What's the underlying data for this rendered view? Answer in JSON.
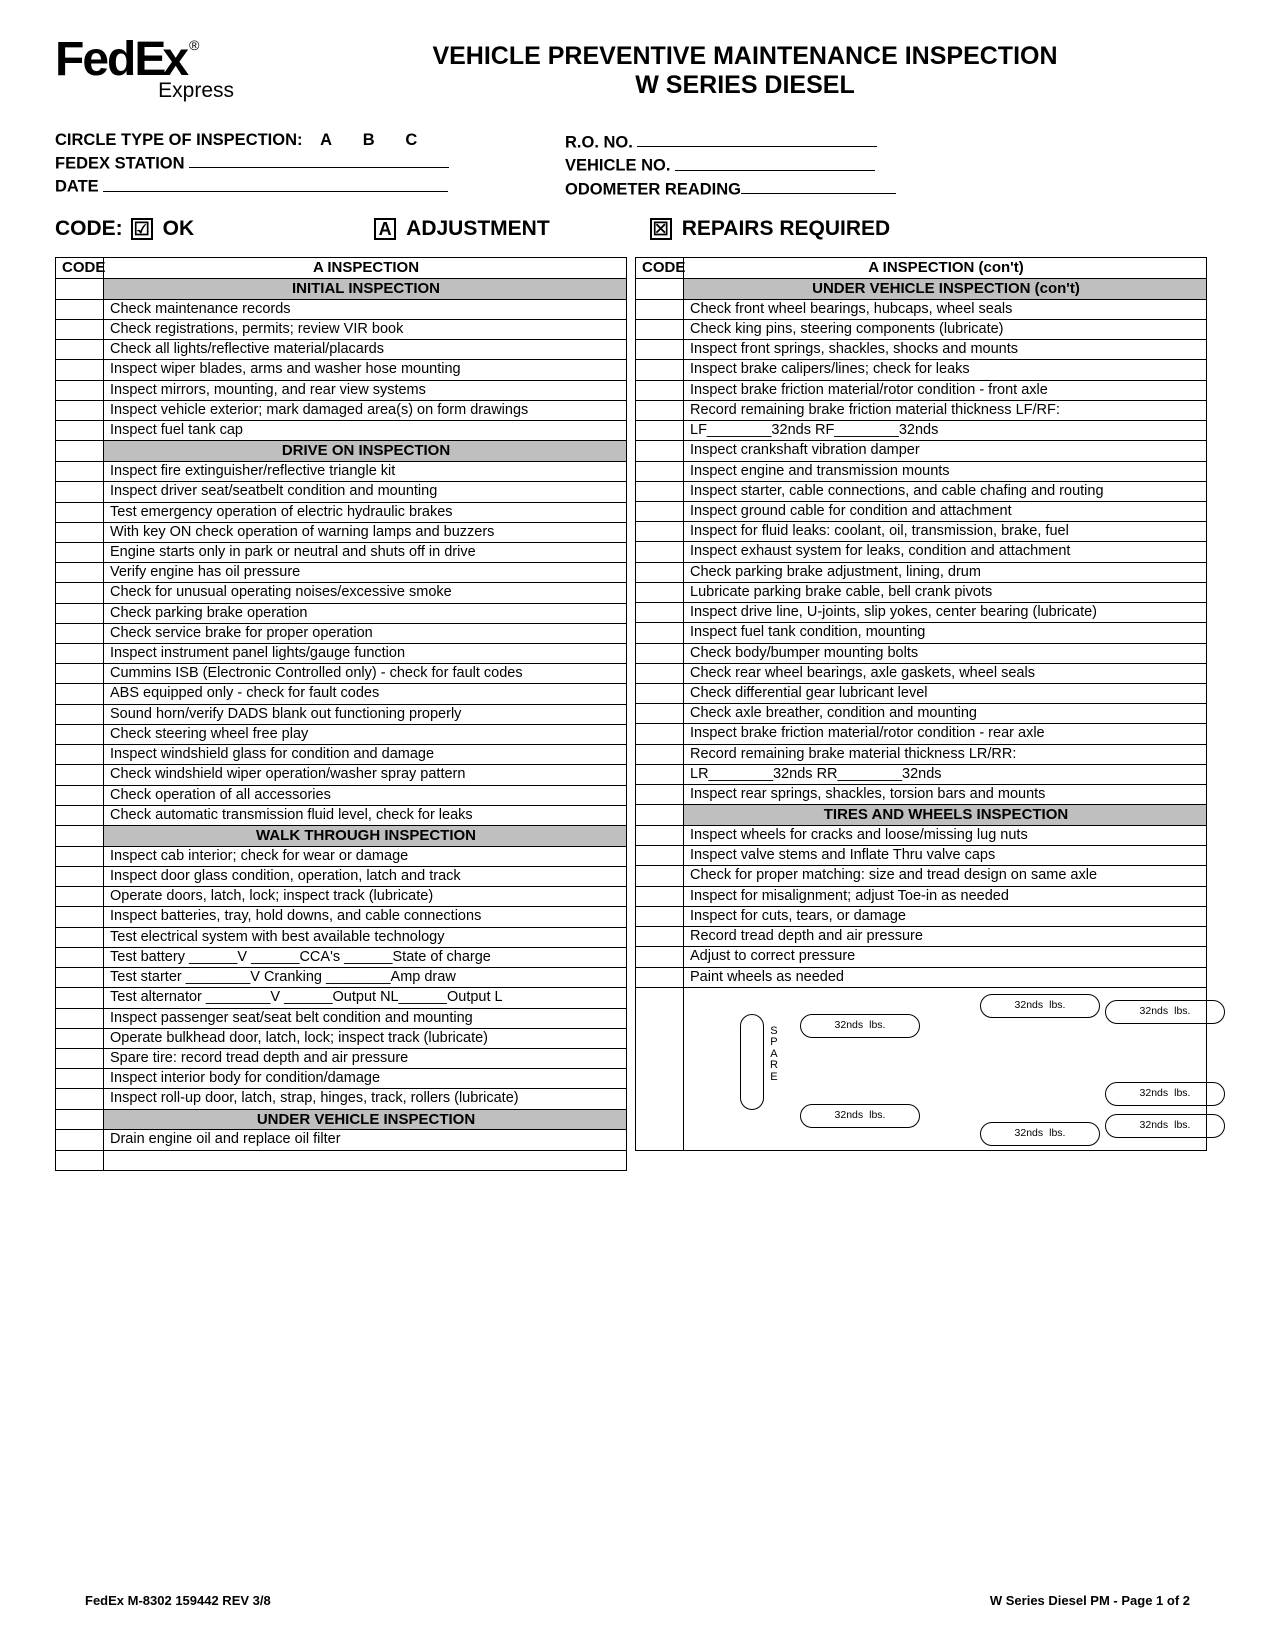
{
  "logo": {
    "brand": "FedEx",
    "sub": "Express",
    "reg": "®"
  },
  "title": {
    "line1": "VEHICLE PREVENTIVE MAINTENANCE INSPECTION",
    "line2": "W SERIES DIESEL"
  },
  "info_left": {
    "circle_label": "CIRCLE TYPE OF INSPECTION:",
    "opts": [
      "A",
      "B",
      "C"
    ],
    "station_label": "FEDEX STATION",
    "date_label": "DATE"
  },
  "info_right": {
    "ro_label": "R.O. NO.",
    "vehicle_label": "VEHICLE NO.",
    "odometer_label": "ODOMETER READING"
  },
  "legend": {
    "code": "CODE:",
    "ok_mark": "☑",
    "ok": "OK",
    "adj_mark": "A",
    "adj": "ADJUSTMENT",
    "rep_mark": "☒",
    "rep": "REPAIRS REQUIRED"
  },
  "col_left": {
    "header_code": "CODE",
    "header_insp": "A INSPECTION",
    "sections": [
      {
        "title": "INITIAL INSPECTION",
        "items": [
          "Check maintenance records",
          "Check registrations, permits; review VIR book",
          "Check all lights/reflective material/placards",
          "Inspect wiper blades, arms and washer hose mounting",
          "Inspect mirrors, mounting, and rear view systems",
          "Inspect vehicle exterior; mark damaged area(s) on form drawings",
          "Inspect fuel tank cap"
        ]
      },
      {
        "title": "DRIVE ON INSPECTION",
        "items": [
          "Inspect fire extinguisher/reflective triangle kit",
          "Inspect driver seat/seatbelt condition and mounting",
          "Test emergency operation of electric hydraulic brakes",
          "With key ON check operation of warning lamps and buzzers",
          "Engine starts only in park or neutral and shuts off in drive",
          "Verify engine has oil pressure",
          "Check for unusual operating noises/excessive smoke",
          "Check parking brake operation",
          "Check service brake for proper operation",
          "Inspect instrument panel lights/gauge function",
          "Cummins ISB (Electronic Controlled only) - check for fault codes",
          "ABS equipped only - check for fault codes",
          "Sound horn/verify DADS blank out functioning properly",
          "Check steering wheel free play",
          "Inspect windshield glass for condition and damage",
          "Check windshield wiper operation/washer spray pattern",
          "Check operation of all accessories",
          "Check automatic transmission fluid level, check for leaks"
        ]
      },
      {
        "title": "WALK THROUGH INSPECTION",
        "items": [
          "Inspect cab interior; check for wear or damage",
          "Inspect door glass condition, operation, latch and track",
          "Operate doors, latch, lock; inspect track (lubricate)",
          "Inspect batteries, tray, hold downs, and cable connections",
          "Test electrical system with best available technology",
          "Test battery ______V ______CCA's ______State of charge",
          "Test starter ________V Cranking ________Amp draw",
          "Test alternator ________V ______Output NL______Output L",
          "Inspect passenger seat/seat belt condition and mounting",
          "Operate bulkhead door, latch, lock; inspect track (lubricate)",
          "Spare tire: record tread depth and air pressure",
          "Inspect interior body for condition/damage",
          "Inspect roll-up door, latch, strap, hinges, track, rollers (lubricate)"
        ]
      },
      {
        "title": "UNDER VEHICLE INSPECTION",
        "items": [
          "Drain engine oil and replace oil filter",
          ""
        ]
      }
    ]
  },
  "col_right": {
    "header_code": "CODE",
    "header_insp": "A INSPECTION (con't)",
    "sections": [
      {
        "title": "UNDER VEHICLE INSPECTION (con't)",
        "items": [
          "Check front wheel bearings, hubcaps, wheel seals",
          "Check king pins, steering components (lubricate)",
          "Inspect front springs, shackles, shocks and mounts",
          "Inspect brake calipers/lines; check for leaks",
          "Inspect brake friction material/rotor condition - front axle",
          "Record remaining brake friction material thickness LF/RF:",
          "          LF________32nds   RF________32nds",
          "Inspect crankshaft vibration damper",
          "Inspect engine and transmission mounts",
          "Inspect starter, cable connections, and cable chafing and routing",
          "Inspect ground cable for condition and attachment",
          "Inspect for fluid leaks: coolant, oil, transmission, brake, fuel",
          "Inspect exhaust system for leaks, condition and attachment",
          "Check parking brake adjustment, lining, drum",
          "Lubricate parking brake cable, bell crank pivots",
          "Inspect drive line, U-joints, slip yokes, center bearing (lubricate)",
          "Inspect fuel tank condition, mounting",
          "Check body/bumper mounting bolts",
          "Check rear wheel bearings, axle gaskets, wheel seals",
          "Check differential gear lubricant level",
          "Check axle breather, condition and mounting",
          "Inspect brake friction material/rotor condition - rear axle",
          "Record remaining brake material thickness LR/RR:",
          "               LR________32nds   RR________32nds",
          "Inspect rear springs, shackles, torsion bars and mounts"
        ]
      },
      {
        "title": "TIRES AND WHEELS INSPECTION",
        "items": [
          "Inspect wheels for cracks and loose/missing lug nuts",
          "Inspect valve stems and Inflate Thru valve caps",
          "Check for proper matching: size and tread design on same axle",
          "Inspect for misalignment; adjust Toe-in as needed",
          "Inspect for cuts, tears, or damage",
          "Record tread depth and air pressure",
          "Adjust to correct pressure",
          "Paint wheels as needed"
        ]
      }
    ]
  },
  "tire_labels": {
    "nds": "32nds",
    "lbs": "lbs.",
    "spare": "S\nP\nA\nR\nE"
  },
  "footer": {
    "left": "FedEx M-8302   159442  REV 3/8",
    "right": "W Series Diesel PM - Page 1 of 2"
  },
  "colors": {
    "section_bg": "#bfbfbf",
    "border": "#000000",
    "text": "#000000"
  }
}
